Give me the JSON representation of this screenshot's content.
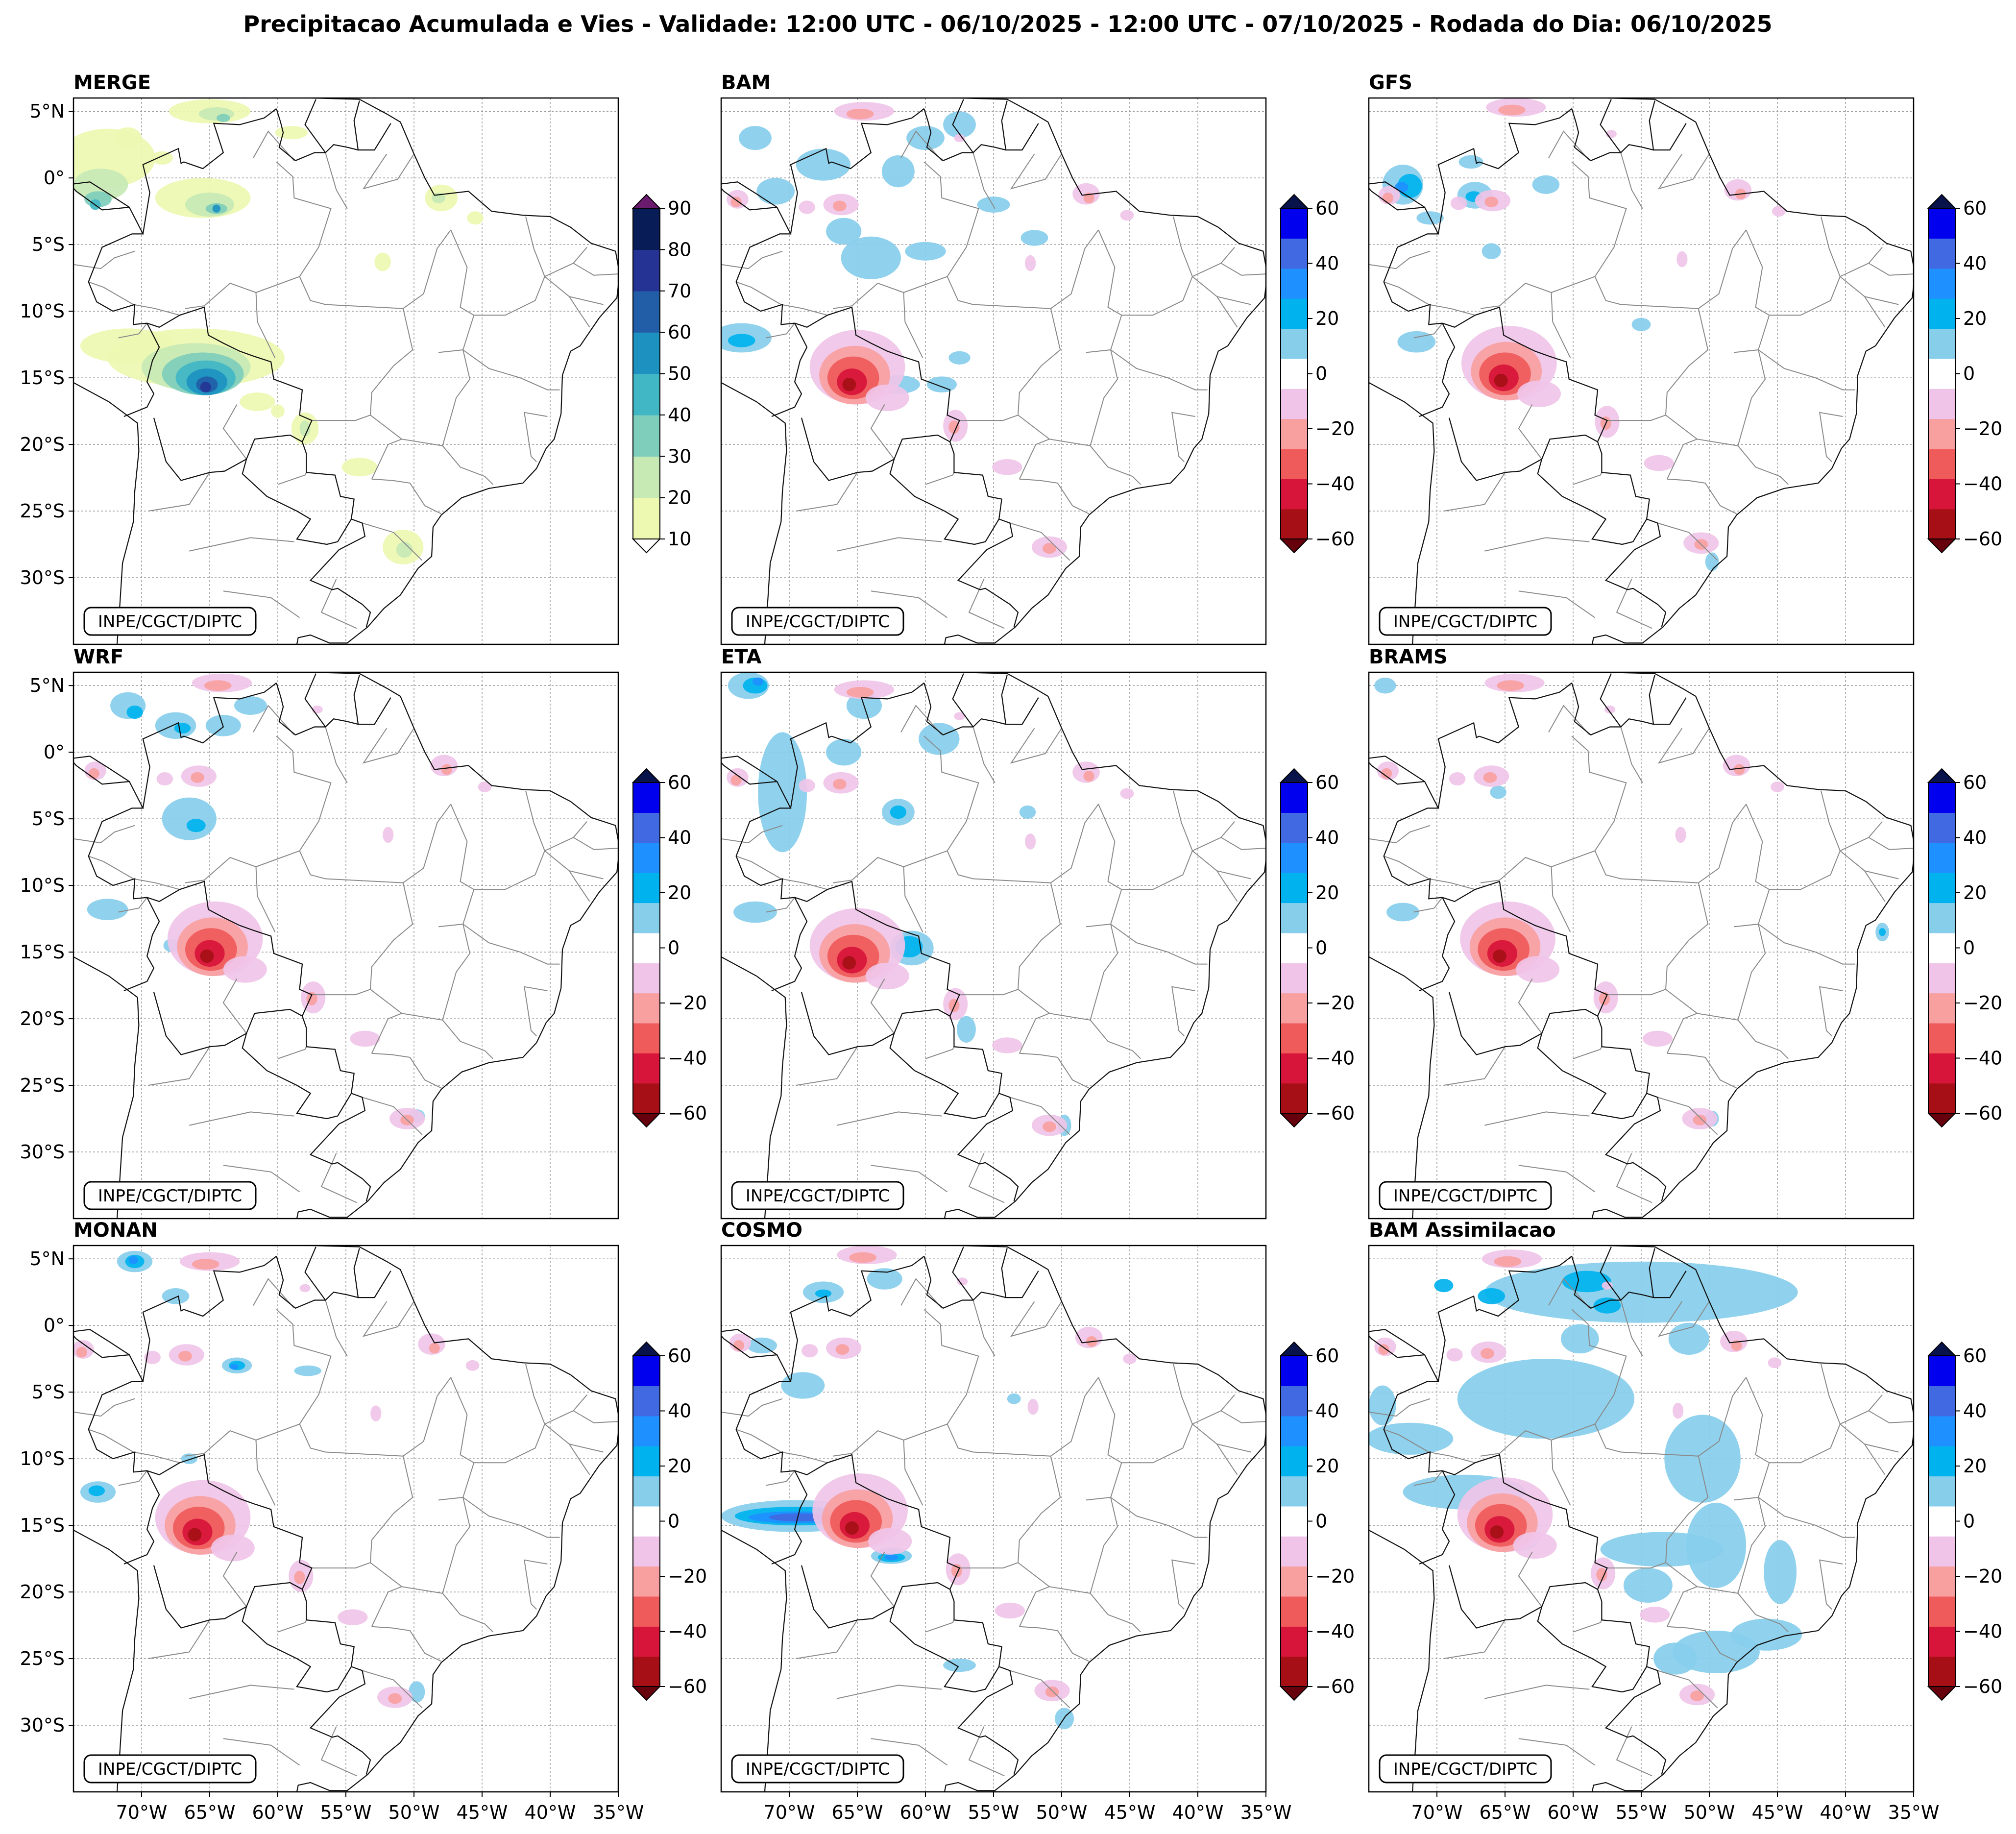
{
  "figure": {
    "title": "Precipitacao Acumulada e Vies - Validade: 12:00 UTC - 06/10/2025 - 12:00 UTC - 07/10/2025 - Rodada do Dia: 06/10/2025",
    "credit": "INPE/CGCT/DIPTC"
  },
  "map_extent": {
    "lon": [
      -75,
      -35
    ],
    "lat": [
      -35,
      6
    ]
  },
  "lat_ticks": [
    {
      "lat": 5,
      "label": "5°N"
    },
    {
      "lat": 0,
      "label": "0°"
    },
    {
      "lat": -5,
      "label": "5°S"
    },
    {
      "lat": -10,
      "label": "10°S"
    },
    {
      "lat": -15,
      "label": "15°S"
    },
    {
      "lat": -20,
      "label": "20°S"
    },
    {
      "lat": -25,
      "label": "25°S"
    },
    {
      "lat": -30,
      "label": "30°S"
    }
  ],
  "lon_ticks": [
    {
      "lon": -70,
      "label": "70°W"
    },
    {
      "lon": -65,
      "label": "65°W"
    },
    {
      "lon": -60,
      "label": "60°W"
    },
    {
      "lon": -55,
      "label": "55°W"
    },
    {
      "lon": -50,
      "label": "50°W"
    },
    {
      "lon": -45,
      "label": "45°W"
    },
    {
      "lon": -40,
      "label": "40°W"
    },
    {
      "lon": -35,
      "label": "35°W"
    }
  ],
  "panels": [
    {
      "title": "MERGE",
      "kind": "precip"
    },
    {
      "title": "BAM",
      "kind": "bias"
    },
    {
      "title": "GFS",
      "kind": "bias"
    },
    {
      "title": "WRF",
      "kind": "bias"
    },
    {
      "title": "ETA",
      "kind": "bias"
    },
    {
      "title": "BRAMS",
      "kind": "bias"
    },
    {
      "title": "MONAN",
      "kind": "bias"
    },
    {
      "title": "COSMO",
      "kind": "bias"
    },
    {
      "title": "BAM Assimilacao",
      "kind": "bias"
    }
  ],
  "colorbars": {
    "precip": {
      "levels": [
        10,
        20,
        30,
        40,
        50,
        60,
        70,
        80,
        90
      ],
      "tick_labels": [
        "10",
        "20",
        "30",
        "40",
        "50",
        "60",
        "70",
        "80",
        "90"
      ],
      "colors": [
        "#edf8b1",
        "#c7e9b4",
        "#7fcdbb",
        "#41b6c4",
        "#1d91c0",
        "#225ea8",
        "#253494",
        "#081d58"
      ],
      "under_color": "#ffffff",
      "over_color": "#6a1b6e"
    },
    "bias": {
      "levels": [
        -60,
        -50,
        -40,
        -30,
        -20,
        -10,
        10,
        20,
        30,
        40,
        50,
        60
      ],
      "tick_values": [
        -60,
        -40,
        -20,
        0,
        20,
        40,
        60
      ],
      "tick_labels": [
        "−60",
        "−40",
        "−20",
        "0",
        "20",
        "40",
        "60"
      ],
      "colors": [
        "#a50f15",
        "#d7153a",
        "#ef5a5a",
        "#f89f9f",
        "#f0c4e8",
        "#ffffff",
        "#87ceeb",
        "#00b2ee",
        "#1e90ff",
        "#4169e1",
        "#0000ee"
      ],
      "under_color": "#67000d",
      "over_color": "#08124b"
    }
  }
}
